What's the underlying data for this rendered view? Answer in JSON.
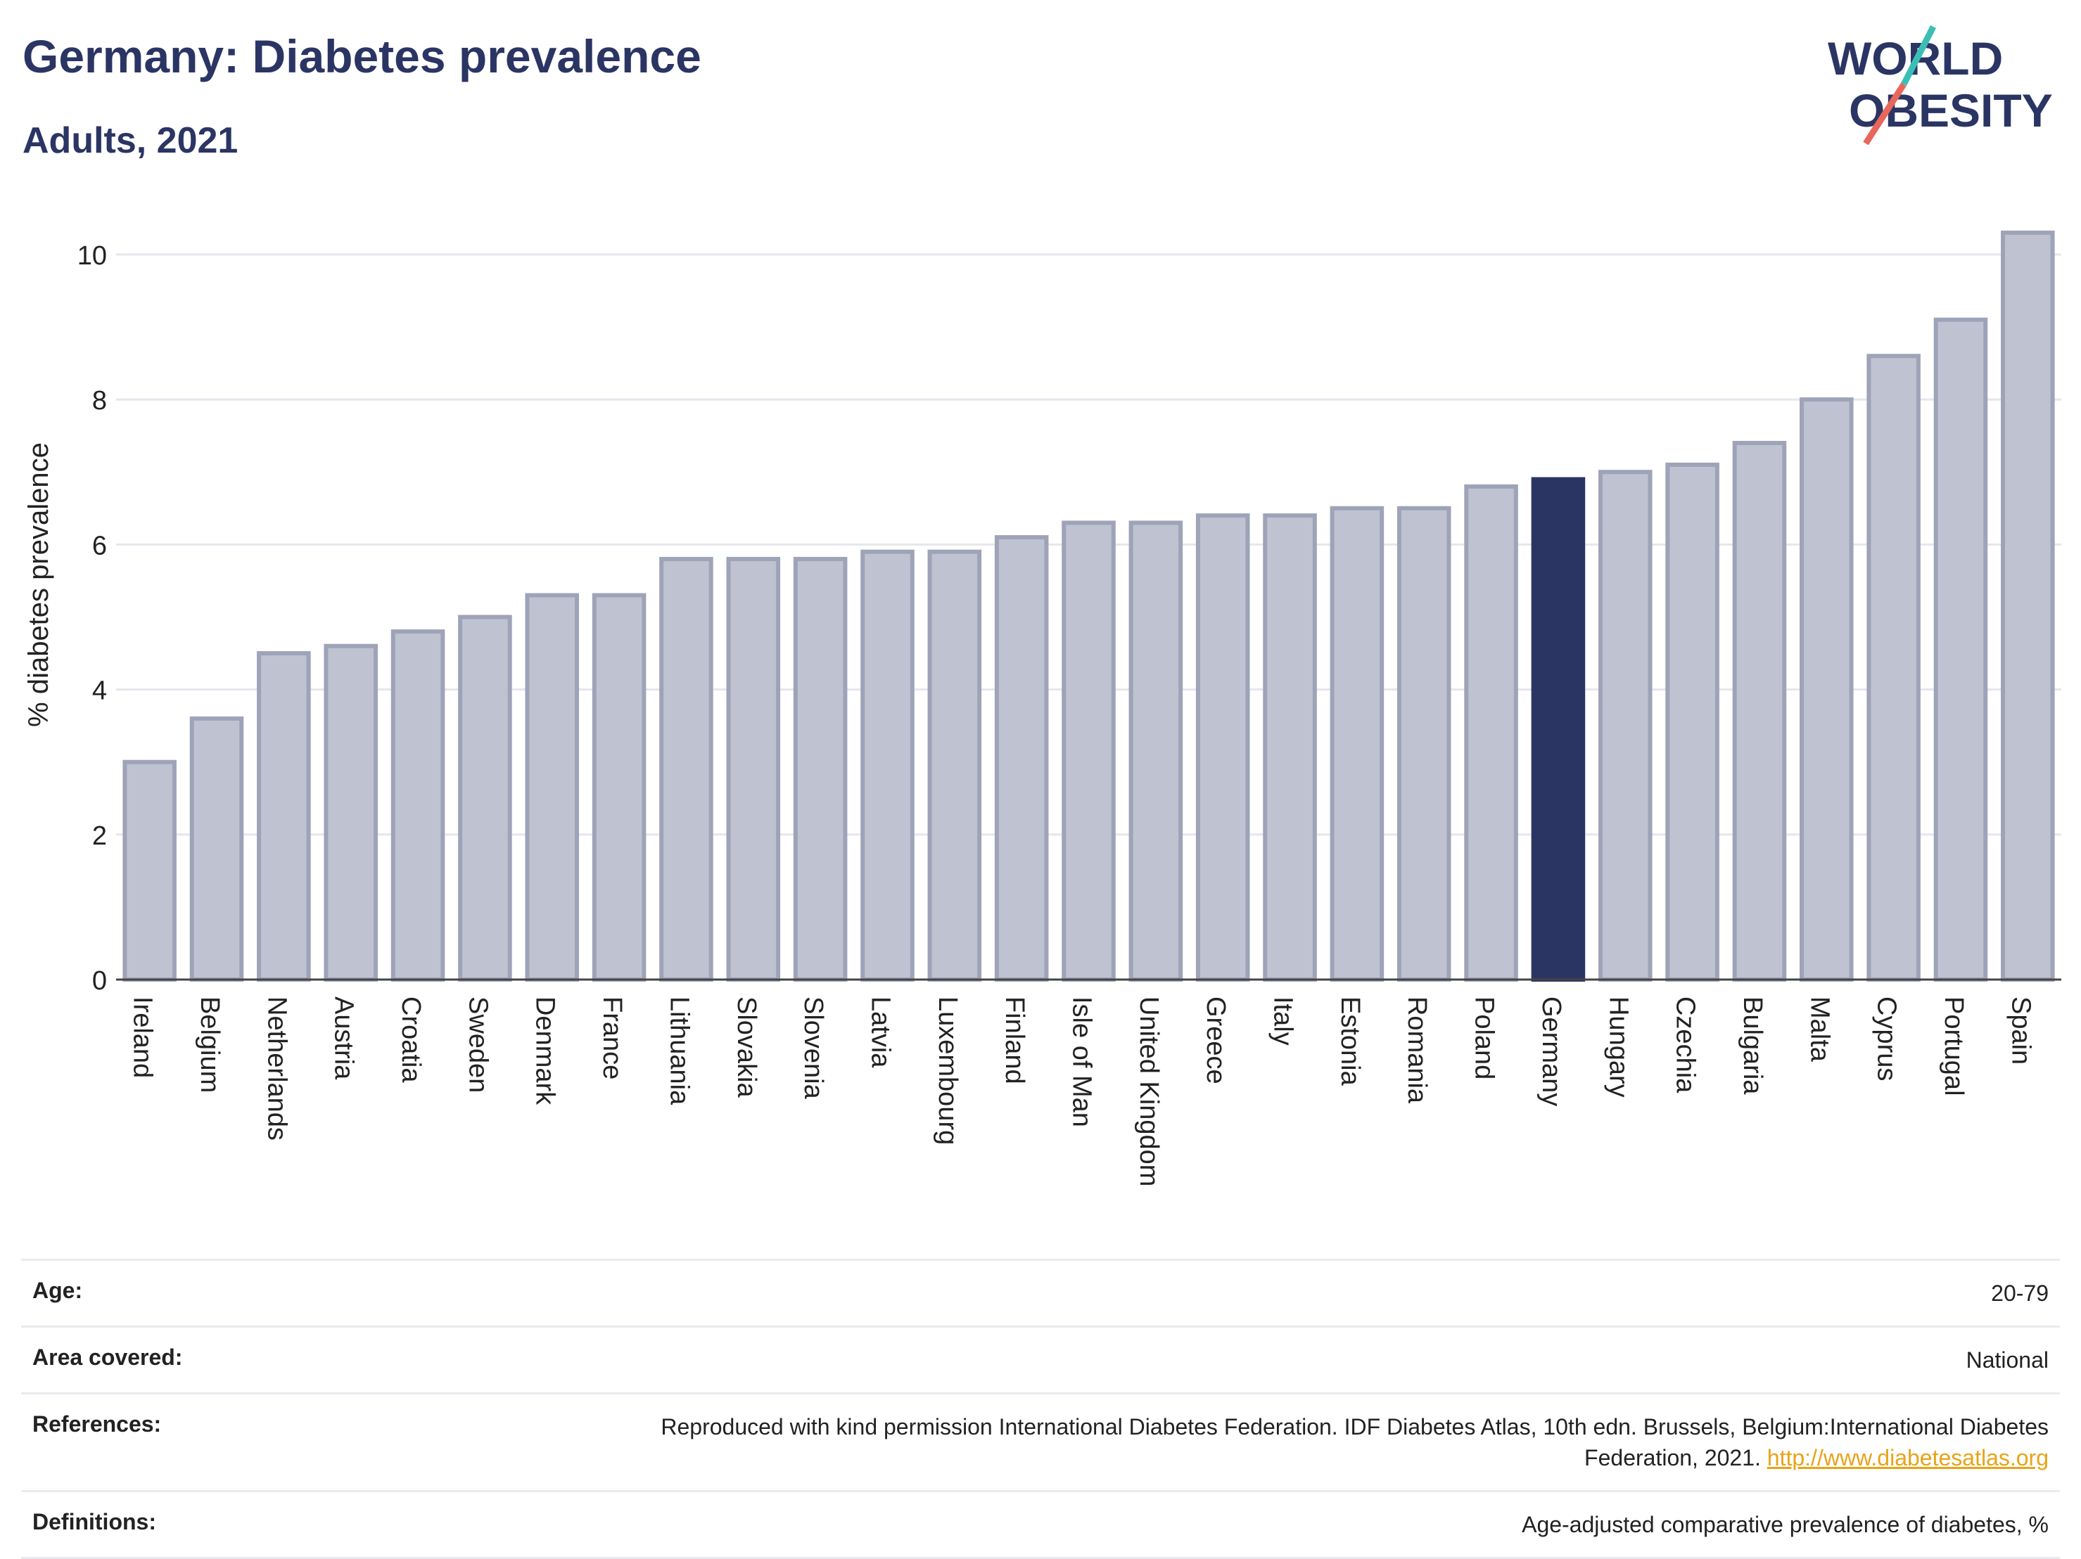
{
  "header": {
    "title": "Germany: Diabetes prevalence",
    "subtitle": "Adults, 2021",
    "logo_line1": "WORLD",
    "logo_line2": "OBESITY"
  },
  "colors": {
    "bar": "#bfc2d0",
    "bar_stroke": "#9fa3b8",
    "highlight": "#2b3564",
    "grid": "#e6e6ee",
    "text": "#2b3564",
    "logo_teal": "#3bbfb5",
    "logo_red": "#e8675a"
  },
  "chart_data": {
    "type": "bar",
    "ylabel": "% diabetes prevalence",
    "ylim": [
      0,
      10.6
    ],
    "yticks": [
      0,
      2,
      4,
      6,
      8,
      10
    ],
    "highlight": "Germany",
    "categories": [
      "Ireland",
      "Belgium",
      "Netherlands",
      "Austria",
      "Croatia",
      "Sweden",
      "Denmark",
      "France",
      "Lithuania",
      "Slovakia",
      "Slovenia",
      "Latvia",
      "Luxembourg",
      "Finland",
      "Isle of Man",
      "United Kingdom",
      "Greece",
      "Italy",
      "Estonia",
      "Romania",
      "Poland",
      "Germany",
      "Hungary",
      "Czechia",
      "Bulgaria",
      "Malta",
      "Cyprus",
      "Portugal",
      "Spain"
    ],
    "values": [
      3.0,
      3.6,
      4.5,
      4.6,
      4.8,
      5.0,
      5.3,
      5.3,
      5.8,
      5.8,
      5.8,
      5.9,
      5.9,
      6.1,
      6.3,
      6.3,
      6.4,
      6.4,
      6.5,
      6.5,
      6.8,
      6.9,
      7.0,
      7.1,
      7.4,
      8.0,
      8.6,
      9.1,
      10.3
    ],
    "grid": true
  },
  "meta": {
    "age_label": "Age:",
    "age_value": "20-79",
    "area_label": "Area covered:",
    "area_value": "National",
    "references_label": "References:",
    "references_text": "Reproduced with kind permission International Diabetes Federation.  IDF Diabetes Atlas, 10th edn. Brussels, Belgium:International Diabetes Federation, 2021. ",
    "references_link": "http://www.diabetesatlas.org",
    "definitions_label": "Definitions:",
    "definitions_value": "Age-adjusted comparative prevalence of diabetes, %"
  }
}
